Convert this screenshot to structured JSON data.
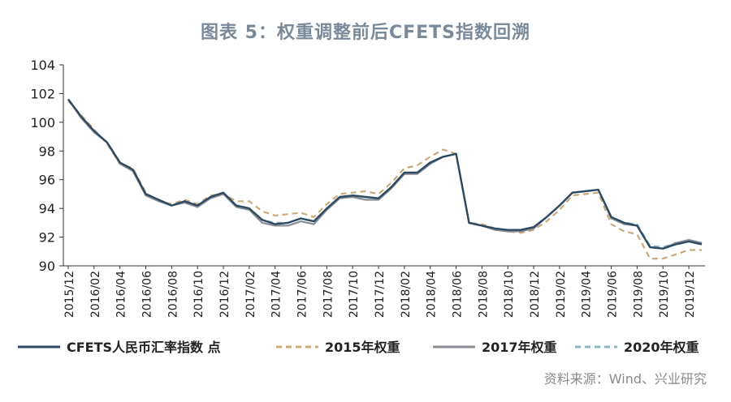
{
  "chart_data": {
    "type": "line",
    "title": "图表 5：权重调整前后CFETS指数回溯",
    "source": "资料来源：Wind、兴业研究",
    "ylim": [
      90,
      104
    ],
    "yticks": [
      "90",
      "92",
      "94",
      "96",
      "98",
      "100",
      "102",
      "104"
    ],
    "x_ticks": [
      "2015/12",
      "2016/02",
      "2016/04",
      "2016/06",
      "2016/08",
      "2016/10",
      "2016/12",
      "2017/02",
      "2017/04",
      "2017/06",
      "2017/08",
      "2017/10",
      "2017/12",
      "2018/02",
      "2018/04",
      "2018/06",
      "2018/08",
      "2018/10",
      "2018/12",
      "2019/02",
      "2019/04",
      "2019/06",
      "2019/08",
      "2019/10",
      "2019/12"
    ],
    "x": [
      "2015/12",
      "2016/01",
      "2016/02",
      "2016/03",
      "2016/04",
      "2016/05",
      "2016/06",
      "2016/07",
      "2016/08",
      "2016/09",
      "2016/10",
      "2016/11",
      "2016/12",
      "2017/01",
      "2017/02",
      "2017/03",
      "2017/04",
      "2017/05",
      "2017/06",
      "2017/07",
      "2017/08",
      "2017/09",
      "2017/10",
      "2017/11",
      "2017/12",
      "2018/01",
      "2018/02",
      "2018/03",
      "2018/04",
      "2018/05",
      "2018/06",
      "2018/07",
      "2018/08",
      "2018/09",
      "2018/10",
      "2018/11",
      "2018/12",
      "2019/01",
      "2019/02",
      "2019/03",
      "2019/04",
      "2019/05",
      "2019/06",
      "2019/07",
      "2019/08",
      "2019/09",
      "2019/10",
      "2019/11",
      "2019/12",
      "2020/01"
    ],
    "legend_position": "bottom",
    "series": [
      {
        "name": "CFETS人民币汇率指数 点",
        "color": "#2e4a62",
        "dash": "solid",
        "values": [
          101.6,
          100.4,
          99.4,
          98.6,
          97.2,
          96.7,
          95.0,
          94.6,
          94.2,
          94.5,
          94.2,
          94.8,
          95.1,
          94.2,
          94.0,
          93.2,
          92.9,
          93.0,
          93.3,
          93.1,
          94.0,
          94.8,
          94.9,
          94.8,
          94.7,
          95.5,
          96.5,
          96.5,
          97.2,
          97.6,
          97.8,
          93.0,
          92.8,
          92.6,
          92.5,
          92.5,
          92.7,
          93.4,
          94.2,
          95.1,
          95.2,
          95.3,
          93.4,
          93.0,
          92.8,
          91.3,
          91.2,
          91.5,
          91.7,
          91.5
        ]
      },
      {
        "name": "2015年权重",
        "color": "#c8aa7c",
        "dash": "dashed",
        "values": [
          101.5,
          100.5,
          99.5,
          98.5,
          97.1,
          96.8,
          95.1,
          94.5,
          94.3,
          94.6,
          94.3,
          94.9,
          95.0,
          94.5,
          94.5,
          93.8,
          93.5,
          93.6,
          93.7,
          93.4,
          94.3,
          95.0,
          95.1,
          95.2,
          95.0,
          95.8,
          96.8,
          97.0,
          97.6,
          98.1,
          97.8,
          93.0,
          92.9,
          92.6,
          92.4,
          92.3,
          92.5,
          93.1,
          93.9,
          94.9,
          95.0,
          95.1,
          92.9,
          92.4,
          92.2,
          90.5,
          90.5,
          90.8,
          91.1,
          91.1
        ]
      },
      {
        "name": "2017年权重",
        "color": "#8a8e94",
        "dash": "solid",
        "values": [
          101.6,
          100.3,
          99.3,
          98.6,
          97.1,
          96.6,
          94.9,
          94.5,
          94.2,
          94.4,
          94.1,
          94.7,
          95.0,
          94.1,
          93.9,
          93.0,
          92.8,
          92.8,
          93.1,
          92.9,
          93.9,
          94.7,
          94.8,
          94.6,
          94.6,
          95.4,
          96.4,
          96.4,
          97.1,
          97.6,
          97.8,
          93.0,
          92.8,
          92.5,
          92.4,
          92.4,
          92.6,
          93.4,
          94.2,
          95.1,
          95.2,
          95.3,
          93.3,
          92.9,
          92.8,
          91.3,
          91.2,
          91.6,
          91.8,
          91.6
        ]
      },
      {
        "name": "2020年权重",
        "color": "#92b3c0",
        "dash": "dashed",
        "values": [
          101.6,
          100.4,
          99.4,
          98.6,
          97.2,
          96.7,
          95.0,
          94.6,
          94.2,
          94.5,
          94.2,
          94.8,
          95.1,
          94.2,
          94.0,
          93.2,
          93.0,
          93.0,
          93.3,
          93.1,
          94.0,
          94.8,
          94.9,
          94.8,
          94.7,
          95.5,
          96.5,
          96.5,
          97.2,
          97.6,
          97.8,
          93.0,
          92.8,
          92.6,
          92.5,
          92.5,
          92.7,
          93.4,
          94.2,
          95.1,
          95.2,
          95.3,
          93.4,
          93.0,
          92.9,
          91.4,
          91.3,
          91.6,
          91.8,
          91.6
        ]
      }
    ]
  }
}
